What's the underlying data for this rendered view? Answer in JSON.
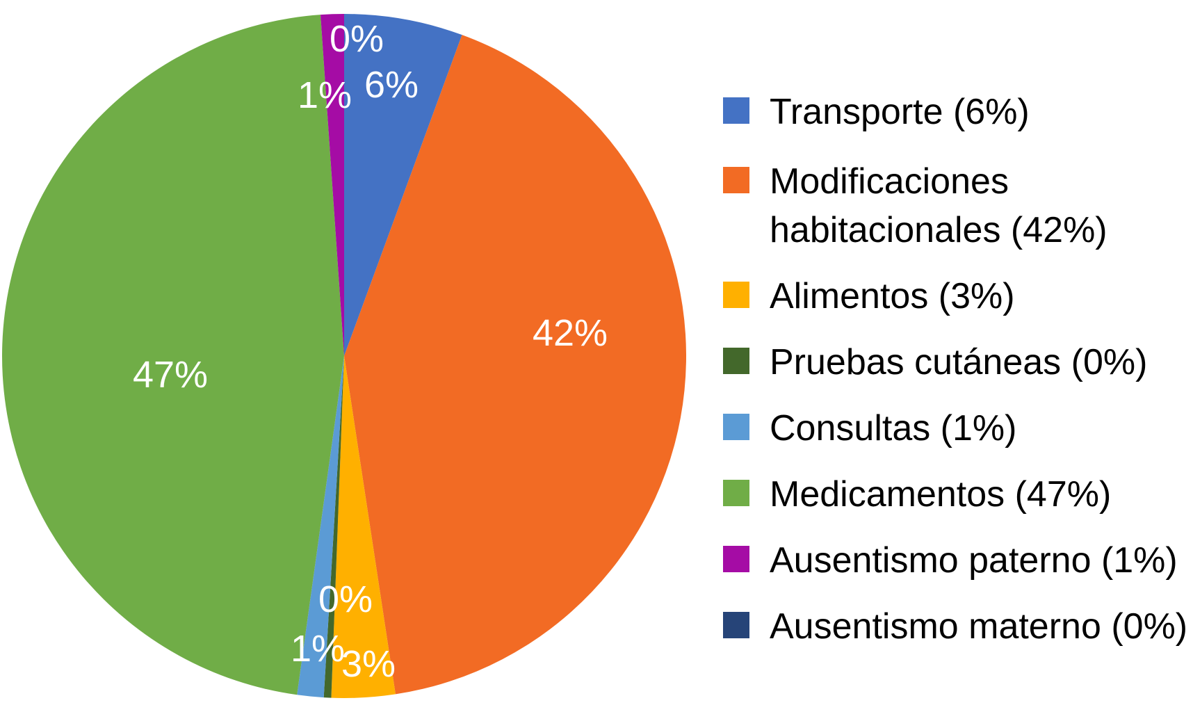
{
  "chart_data": {
    "type": "pie",
    "start_angle_deg": 0,
    "direction": "clockwise",
    "slices": [
      {
        "legend": "Transporte (6%)",
        "value": 5.6,
        "label": "6%",
        "color": "#4472C4"
      },
      {
        "legend": "Modificaciones habitacionales (42%)",
        "legend_lines": [
          "Modificaciones",
          "habitacionales (42%)"
        ],
        "value": 42.0,
        "label": "42%",
        "color": "#F26B24"
      },
      {
        "legend": "Alimentos (3%)",
        "value": 3.0,
        "label": "3%",
        "color": "#FFB000"
      },
      {
        "legend": "Pruebas cutáneas (0%)",
        "value": 0.35,
        "label": "0%",
        "color": "#43682B"
      },
      {
        "legend": "Consultas (1%)",
        "value": 1.25,
        "label": "1%",
        "color": "#5B9BD5"
      },
      {
        "legend": "Medicamentos (47%)",
        "value": 46.7,
        "label": "47%",
        "color": "#70AD47"
      },
      {
        "legend": "Ausentismo paterno (1%)",
        "value": 1.1,
        "label": "1%",
        "color": "#A50CA5"
      },
      {
        "legend": "Ausentismo materno (0%)",
        "value": 0.0,
        "label": "0%",
        "color": "#264478"
      }
    ],
    "legend_position": "right"
  }
}
